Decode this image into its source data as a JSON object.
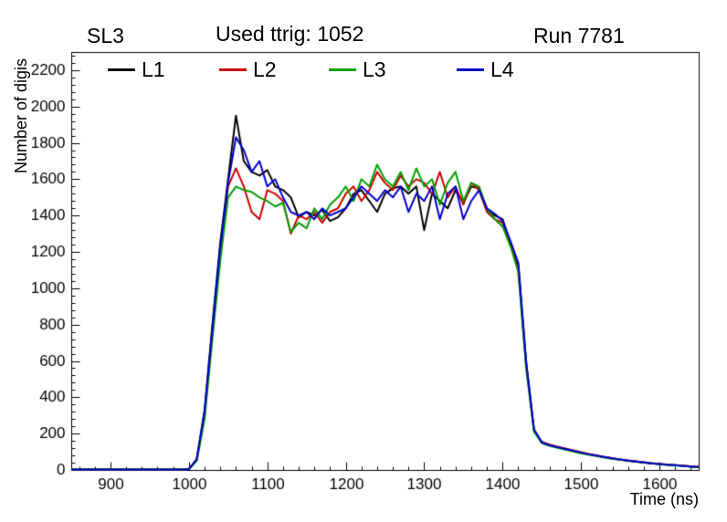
{
  "header": {
    "left": "SL3",
    "center": "Used ttrig: 1052",
    "right": "Run 7781"
  },
  "chart_data": {
    "type": "line",
    "title": "SL3  Used ttrig: 1052  Run 7781",
    "xlabel": "Time (ns)",
    "ylabel": "Number of digis",
    "xlim": [
      850,
      1650
    ],
    "ylim": [
      0,
      2300
    ],
    "x_ticks": [
      900,
      1000,
      1100,
      1200,
      1300,
      1400,
      1500,
      1600
    ],
    "y_ticks": [
      0,
      200,
      400,
      600,
      800,
      1000,
      1200,
      1400,
      1600,
      1800,
      2000,
      2200
    ],
    "x_minor_step": 20,
    "y_minor_step": 40,
    "grid": false,
    "legend_position": "top",
    "x": [
      850,
      860,
      870,
      880,
      890,
      900,
      910,
      920,
      930,
      940,
      950,
      960,
      970,
      980,
      990,
      1000,
      1010,
      1020,
      1030,
      1040,
      1050,
      1060,
      1070,
      1080,
      1090,
      1100,
      1110,
      1120,
      1130,
      1140,
      1150,
      1160,
      1170,
      1180,
      1190,
      1200,
      1210,
      1220,
      1230,
      1240,
      1250,
      1260,
      1270,
      1280,
      1290,
      1300,
      1310,
      1320,
      1330,
      1340,
      1350,
      1360,
      1370,
      1380,
      1390,
      1400,
      1410,
      1420,
      1430,
      1440,
      1450,
      1460,
      1470,
      1480,
      1490,
      1500,
      1510,
      1520,
      1530,
      1540,
      1550,
      1560,
      1570,
      1580,
      1590,
      1600,
      1610,
      1620,
      1630,
      1640,
      1650
    ],
    "series": [
      {
        "name": "L1",
        "color": "#000000",
        "values": [
          2,
          2,
          3,
          2,
          3,
          2,
          3,
          2,
          3,
          2,
          3,
          3,
          2,
          3,
          3,
          5,
          60,
          330,
          800,
          1250,
          1600,
          1950,
          1700,
          1640,
          1620,
          1650,
          1560,
          1540,
          1500,
          1390,
          1420,
          1400,
          1430,
          1370,
          1390,
          1440,
          1520,
          1540,
          1480,
          1420,
          1520,
          1550,
          1560,
          1520,
          1560,
          1320,
          1520,
          1480,
          1440,
          1540,
          1470,
          1560,
          1550,
          1430,
          1400,
          1380,
          1250,
          1130,
          600,
          220,
          150,
          135,
          125,
          115,
          105,
          95,
          85,
          78,
          70,
          63,
          57,
          52,
          47,
          42,
          37,
          32,
          29,
          26,
          23,
          19,
          15
        ]
      },
      {
        "name": "L2",
        "color": "#cc0000",
        "values": [
          2,
          3,
          2,
          3,
          2,
          3,
          2,
          3,
          2,
          3,
          2,
          3,
          3,
          3,
          2,
          5,
          55,
          300,
          760,
          1200,
          1560,
          1660,
          1560,
          1420,
          1380,
          1540,
          1520,
          1480,
          1300,
          1400,
          1380,
          1420,
          1360,
          1420,
          1440,
          1520,
          1560,
          1480,
          1540,
          1640,
          1580,
          1540,
          1620,
          1560,
          1600,
          1580,
          1520,
          1640,
          1500,
          1560,
          1460,
          1580,
          1540,
          1420,
          1380,
          1360,
          1240,
          1100,
          580,
          215,
          155,
          140,
          128,
          118,
          108,
          98,
          88,
          80,
          72,
          65,
          58,
          53,
          48,
          43,
          38,
          34,
          30,
          27,
          24,
          20,
          17
        ]
      },
      {
        "name": "L3",
        "color": "#00a000",
        "values": [
          2,
          2,
          3,
          3,
          2,
          3,
          2,
          2,
          3,
          3,
          2,
          3,
          2,
          3,
          3,
          5,
          50,
          280,
          720,
          1150,
          1500,
          1560,
          1540,
          1530,
          1500,
          1480,
          1450,
          1470,
          1310,
          1360,
          1330,
          1440,
          1380,
          1460,
          1500,
          1560,
          1480,
          1600,
          1560,
          1680,
          1600,
          1560,
          1640,
          1540,
          1660,
          1560,
          1600,
          1460,
          1580,
          1640,
          1480,
          1580,
          1560,
          1440,
          1380,
          1340,
          1230,
          1090,
          560,
          210,
          148,
          133,
          122,
          112,
          102,
          92,
          84,
          76,
          68,
          61,
          56,
          50,
          45,
          40,
          36,
          31,
          28,
          25,
          22,
          18,
          15
        ]
      },
      {
        "name": "L4",
        "color": "#0000cc",
        "values": [
          2,
          3,
          2,
          2,
          3,
          2,
          3,
          3,
          2,
          3,
          3,
          2,
          3,
          2,
          3,
          5,
          58,
          320,
          780,
          1230,
          1580,
          1830,
          1760,
          1640,
          1700,
          1560,
          1600,
          1500,
          1420,
          1400,
          1420,
          1380,
          1440,
          1400,
          1420,
          1440,
          1500,
          1560,
          1520,
          1480,
          1540,
          1500,
          1560,
          1420,
          1520,
          1480,
          1560,
          1380,
          1520,
          1560,
          1380,
          1480,
          1540,
          1440,
          1410,
          1370,
          1260,
          1140,
          590,
          225,
          152,
          136,
          126,
          116,
          106,
          96,
          86,
          79,
          71,
          64,
          58,
          52,
          47,
          42,
          37,
          33,
          29,
          26,
          23,
          19,
          16
        ]
      }
    ]
  }
}
